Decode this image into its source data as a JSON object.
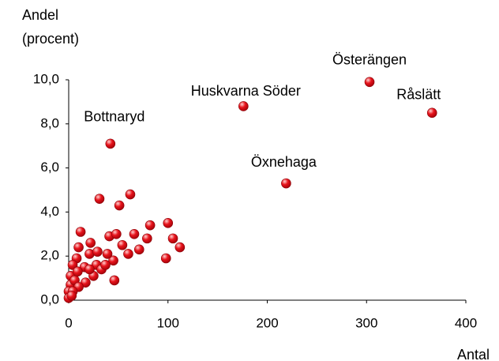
{
  "chart_data": {
    "type": "scatter",
    "y_label": [
      "Andel",
      "(procent)"
    ],
    "x_label": "Antal",
    "color": "#e8141c",
    "xlim": [
      0,
      400
    ],
    "xticks": [
      0,
      100,
      200,
      300,
      400
    ],
    "ylim": [
      0,
      10
    ],
    "yticks": [
      {
        "value": 0,
        "label": "0,0"
      },
      {
        "value": 2,
        "label": "2,0"
      },
      {
        "value": 4,
        "label": "4,0"
      },
      {
        "value": 6,
        "label": "6,0"
      },
      {
        "value": 8,
        "label": "8,0"
      },
      {
        "value": 10,
        "label": "10,0"
      }
    ],
    "x": [
      303,
      366,
      176,
      219,
      42,
      41,
      31,
      62,
      51,
      48,
      12,
      100,
      82,
      66,
      105,
      79,
      112,
      71,
      60,
      98,
      54,
      46,
      22,
      10,
      21,
      29,
      45,
      39,
      8,
      16,
      28,
      33,
      37,
      25,
      17,
      4,
      2,
      2,
      0,
      0,
      6,
      9,
      21,
      10,
      4,
      3
    ],
    "values": [
      9.9,
      8.5,
      8.8,
      5.3,
      7.1,
      2.9,
      4.6,
      4.8,
      4.3,
      3.0,
      3.1,
      3.5,
      3.4,
      3.0,
      2.8,
      2.8,
      2.4,
      2.3,
      2.1,
      1.9,
      2.5,
      0.9,
      2.6,
      2.4,
      2.1,
      2.2,
      1.8,
      2.1,
      1.9,
      1.5,
      1.6,
      1.4,
      1.6,
      1.1,
      0.8,
      1.6,
      1.1,
      0.7,
      0.4,
      0.1,
      0.9,
      1.3,
      1.4,
      0.6,
      0.4,
      0.2
    ],
    "labels": [
      "Österängen",
      "Råslätt",
      "Huskvarna Söder",
      "Öxnehaga",
      "Bottnaryd",
      null,
      null,
      null,
      null,
      null,
      null,
      null,
      null,
      null,
      null,
      null,
      null,
      null,
      null,
      null,
      null,
      null,
      null,
      null,
      null,
      null,
      null,
      null,
      null,
      null,
      null,
      null,
      null,
      null,
      null,
      null,
      null,
      null,
      null,
      null,
      null,
      null,
      null,
      null,
      null,
      null
    ]
  }
}
